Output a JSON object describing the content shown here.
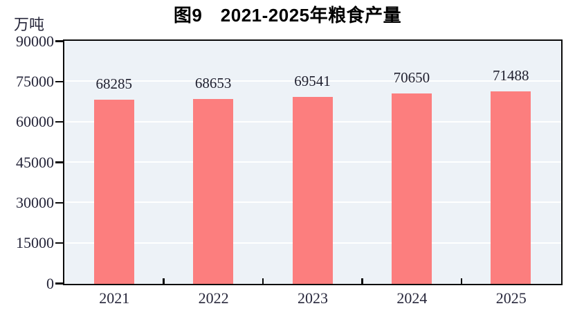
{
  "chart_data": {
    "type": "bar",
    "title": "图9　2021-2025年粮食产量",
    "ylabel": "万吨",
    "xlabel": "",
    "categories": [
      "2021",
      "2022",
      "2023",
      "2024",
      "2025"
    ],
    "values": [
      68285,
      68653,
      69541,
      70650,
      71488
    ],
    "ylim": [
      0,
      90000
    ],
    "yticks": [
      0,
      15000,
      30000,
      45000,
      60000,
      75000,
      90000
    ],
    "grid": true,
    "legend_position": "none",
    "colors": {
      "bar": "#FC7E7E",
      "plot_background": "#EDF2F7",
      "gridline": "#FFFFFF",
      "axis": "#0A0A0A",
      "tick_label": "#26263A",
      "value_label": "#1F1F2E",
      "title": "#000000"
    }
  }
}
